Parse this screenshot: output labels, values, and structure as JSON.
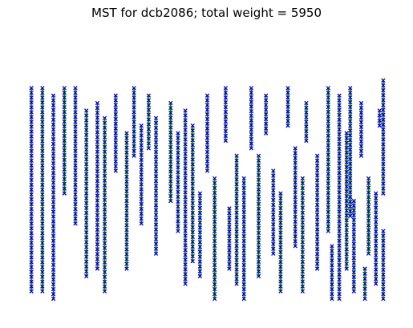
{
  "chart_data": {
    "type": "scatter",
    "title": "MST for dcb2086; total weight = 5950",
    "xlabel": "",
    "ylabel": "",
    "axes_visible": false,
    "grid": false,
    "legend": "none",
    "colors": {
      "points": "#0000cc",
      "edges": "#008000"
    },
    "xlim": [
      0,
      100
    ],
    "ylim": [
      0,
      72
    ],
    "series": [
      {
        "type": "line",
        "points": [
          [
            2,
            58
          ],
          [
            2,
            4
          ],
          [
            5,
            58
          ],
          [
            5,
            4
          ],
          [
            8,
            56
          ],
          [
            8,
            2
          ],
          [
            11,
            58
          ],
          [
            11,
            30
          ],
          [
            14,
            58
          ],
          [
            14,
            22
          ],
          [
            17,
            52
          ],
          [
            17,
            8
          ],
          [
            20,
            54
          ],
          [
            20,
            10
          ],
          [
            25,
            56
          ],
          [
            25,
            36
          ],
          [
            30,
            58
          ],
          [
            30,
            40
          ],
          [
            34,
            56
          ],
          [
            34,
            42
          ],
          [
            40,
            54
          ],
          [
            40,
            28
          ],
          [
            44,
            52
          ],
          [
            44,
            6
          ],
          [
            50,
            56
          ],
          [
            50,
            36
          ],
          [
            55,
            58
          ],
          [
            55,
            44
          ],
          [
            62,
            58
          ],
          [
            62,
            42
          ],
          [
            66,
            56
          ],
          [
            66,
            46
          ],
          [
            72,
            58
          ],
          [
            72,
            48
          ],
          [
            77,
            54
          ],
          [
            77,
            44
          ],
          [
            83,
            58
          ],
          [
            83,
            20
          ],
          [
            86,
            56
          ],
          [
            86,
            2
          ],
          [
            89,
            58
          ],
          [
            89,
            24
          ],
          [
            97,
            52
          ],
          [
            97,
            48
          ],
          [
            92,
            54
          ],
          [
            92,
            40
          ],
          [
            98,
            60
          ],
          [
            98,
            30
          ]
        ]
      },
      {
        "type": "line",
        "points": [
          [
            22,
            50
          ],
          [
            22,
            4
          ],
          [
            28,
            46
          ],
          [
            28,
            10
          ],
          [
            32,
            48
          ],
          [
            32,
            22
          ],
          [
            36,
            50
          ],
          [
            36,
            14
          ],
          [
            42,
            46
          ],
          [
            42,
            20
          ],
          [
            46,
            48
          ],
          [
            46,
            12
          ],
          [
            48,
            30
          ],
          [
            48,
            8
          ],
          [
            52,
            34
          ],
          [
            52,
            2
          ],
          [
            56,
            26
          ],
          [
            56,
            10
          ],
          [
            58,
            40
          ],
          [
            58,
            6
          ],
          [
            60,
            34
          ],
          [
            60,
            2
          ],
          [
            64,
            40
          ],
          [
            64,
            8
          ],
          [
            68,
            36
          ],
          [
            68,
            14
          ],
          [
            70,
            30
          ],
          [
            70,
            4
          ],
          [
            74,
            42
          ],
          [
            74,
            16
          ],
          [
            76,
            34
          ],
          [
            76,
            4
          ],
          [
            80,
            40
          ],
          [
            80,
            10
          ],
          [
            84,
            16
          ],
          [
            84,
            2
          ],
          [
            94,
            34
          ],
          [
            94,
            14
          ],
          [
            96,
            30
          ],
          [
            96,
            6
          ],
          [
            98,
            20
          ],
          [
            98,
            2
          ],
          [
            88,
            46
          ],
          [
            88,
            10
          ],
          [
            90,
            28
          ],
          [
            90,
            4
          ],
          [
            93,
            10
          ],
          [
            93,
            2
          ]
        ]
      }
    ]
  }
}
